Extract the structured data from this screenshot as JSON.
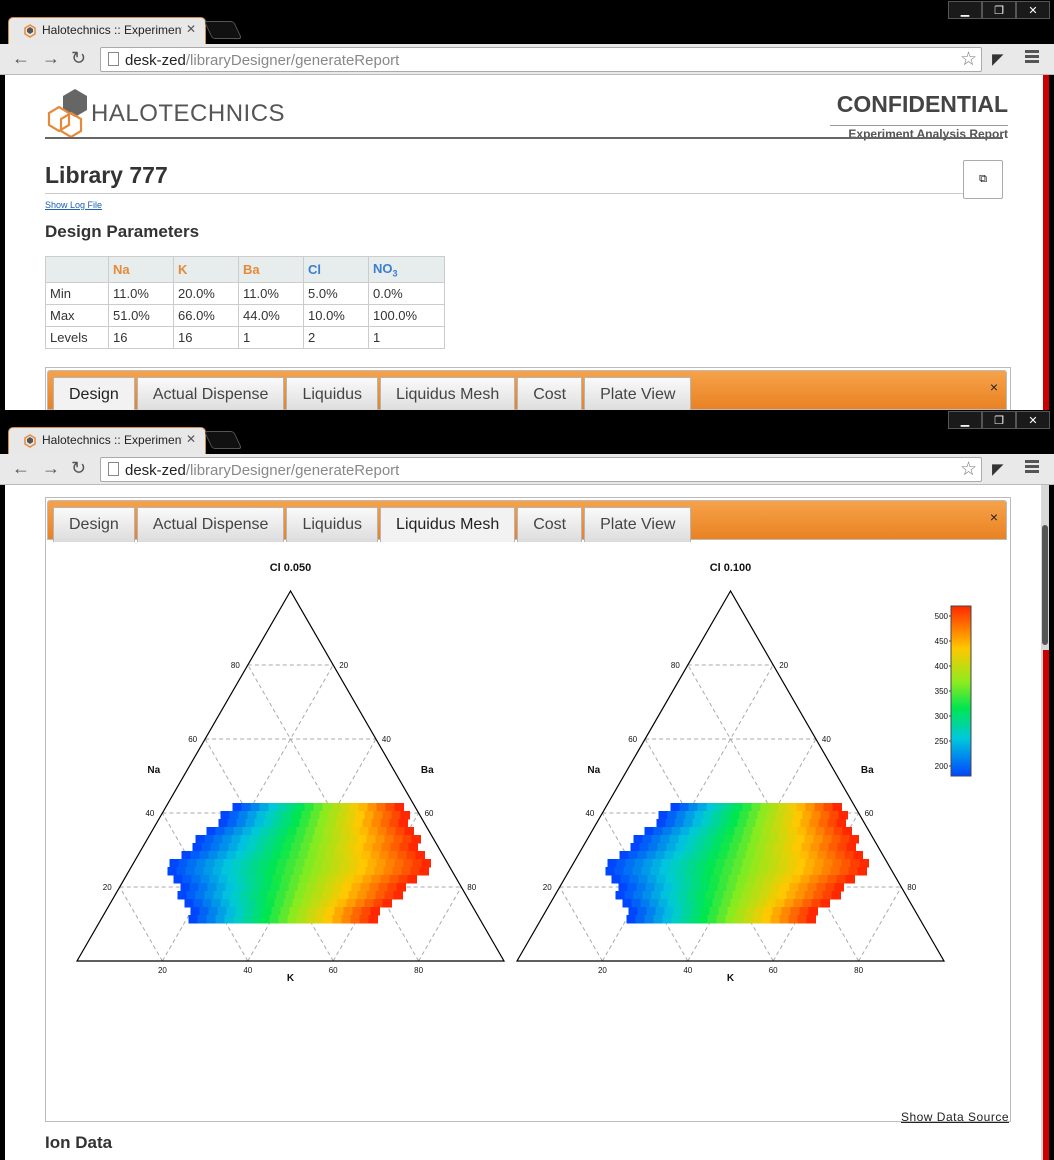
{
  "browser": {
    "tab_title": "Halotechnics :: Experiment",
    "url_host": "desk-zed",
    "url_path": "/libraryDesigner/generateReport"
  },
  "header": {
    "logo_text": "HALOTECHNICS",
    "confidential": "CONFIDENTIAL",
    "report_type": "Experiment Analysis Report"
  },
  "library": {
    "title": "Library 777",
    "show_log": "Show Log File",
    "design_params_title": "Design Parameters"
  },
  "params_table": {
    "headers": [
      "",
      "Na",
      "K",
      "Ba",
      "Cl",
      "NO3"
    ],
    "rows": [
      [
        "Min",
        "11.0%",
        "20.0%",
        "11.0%",
        "5.0%",
        "0.0%"
      ],
      [
        "Max",
        "51.0%",
        "66.0%",
        "44.0%",
        "10.0%",
        "100.0%"
      ],
      [
        "Levels",
        "16",
        "16",
        "1",
        "2",
        "1"
      ]
    ]
  },
  "report_tabs": [
    "Design",
    "Actual Dispense",
    "Liquidus",
    "Liquidus Mesh",
    "Cost",
    "Plate View"
  ],
  "tab_close": "×",
  "colors": {
    "accent": "#ee8a2a",
    "chrome_bg": "#000000"
  },
  "chart_data": [
    {
      "type": "ternary-heatmap",
      "title": "Cl 0.050",
      "axes": {
        "left": "Na",
        "right": "Ba",
        "bottom": "K"
      },
      "ticks": [
        "20",
        "40",
        "60",
        "80"
      ],
      "color_scale": {
        "min": 200,
        "max": 500,
        "labels": [
          "500",
          "450",
          "400",
          "350",
          "300",
          "250",
          "200"
        ]
      }
    },
    {
      "type": "ternary-heatmap",
      "title": "Cl 0.100",
      "axes": {
        "left": "Na",
        "right": "Ba",
        "bottom": "K"
      },
      "ticks": [
        "20",
        "40",
        "60",
        "80"
      ]
    }
  ],
  "footer": {
    "show_data_source": "Show Data Source",
    "ion_data": "Ion Data"
  }
}
